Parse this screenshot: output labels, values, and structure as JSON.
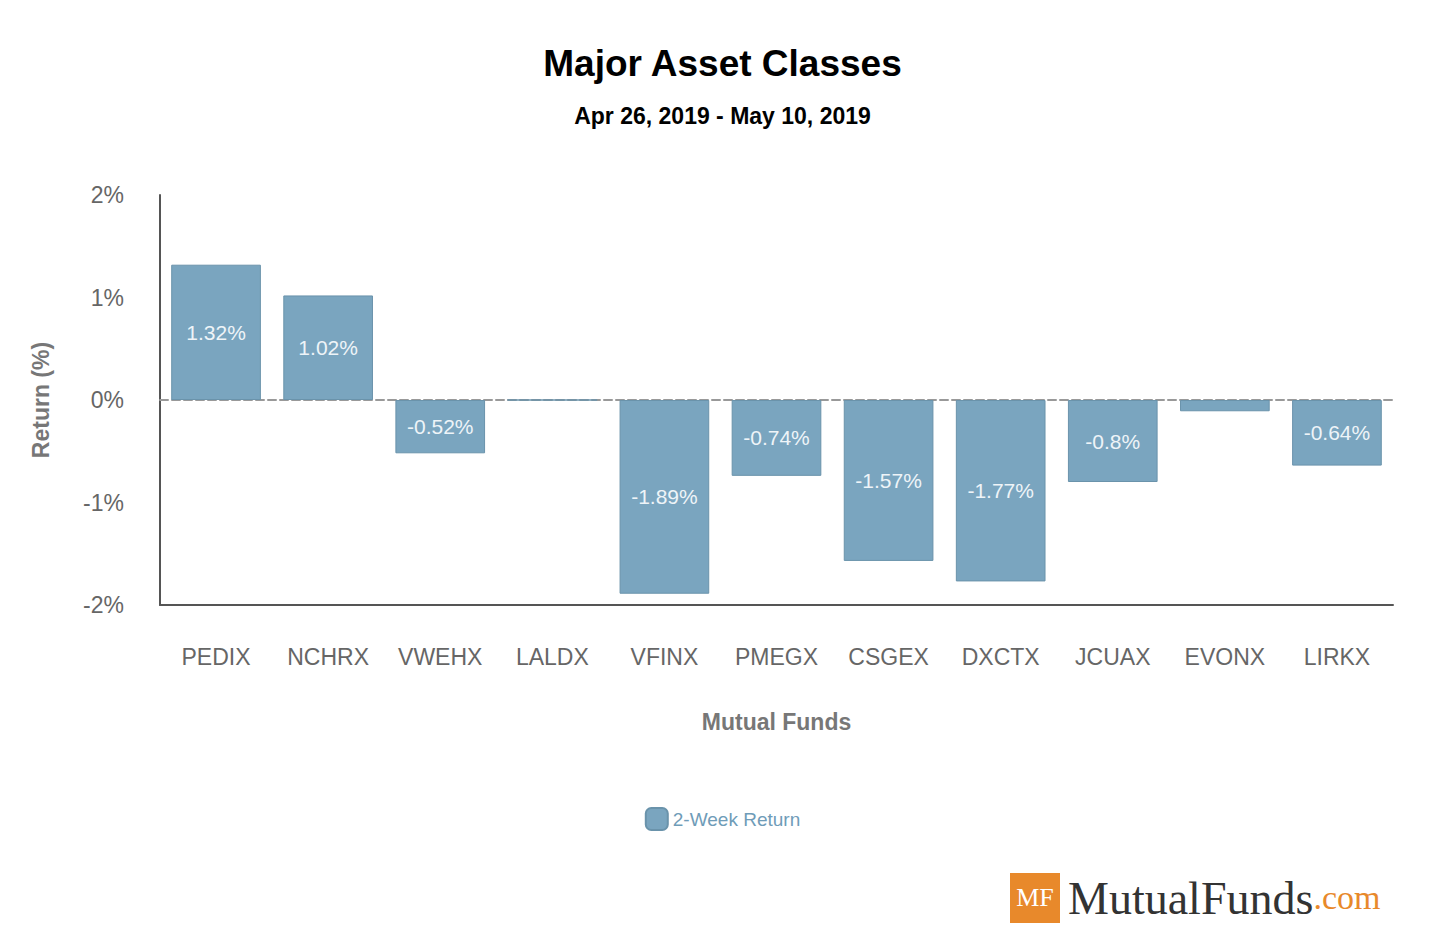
{
  "chart_data": {
    "type": "bar",
    "title": "Major Asset Classes",
    "subtitle": "Apr 26, 2019 - May 10, 2019",
    "x_label": "Mutual Funds",
    "y_label": "Return (%)",
    "categories": [
      "PEDIX",
      "NCHRX",
      "VWEHX",
      "LALDX",
      "VFINX",
      "PMEGX",
      "CSGEX",
      "DXCTX",
      "JCUAX",
      "EVONX",
      "LIRKX"
    ],
    "series": [
      {
        "name": "2-Week Return",
        "color": "#7aa5bf",
        "values": [
          1.32,
          1.02,
          -0.52,
          0,
          -1.89,
          -0.74,
          -1.57,
          -1.77,
          -0.8,
          -0.11,
          -0.64
        ],
        "value_labels": [
          "1.32%",
          "1.02%",
          "-0.52%",
          null,
          "-1.89%",
          "-0.74%",
          "-1.57%",
          "-1.77%",
          "-0.8%",
          null,
          "-0.64%"
        ]
      }
    ],
    "ylim": [
      -2,
      2
    ],
    "yticks": [
      {
        "value": -2,
        "label": "-2%"
      },
      {
        "value": -1,
        "label": "-1%"
      },
      {
        "value": 0,
        "label": "0%"
      },
      {
        "value": 1,
        "label": "1%"
      },
      {
        "value": 2,
        "label": "2%"
      }
    ],
    "grid": false,
    "legend": "bottom",
    "data_labels": true
  },
  "logo": {
    "badge": "MF",
    "text": "MutualFunds",
    "suffix": ".com"
  }
}
